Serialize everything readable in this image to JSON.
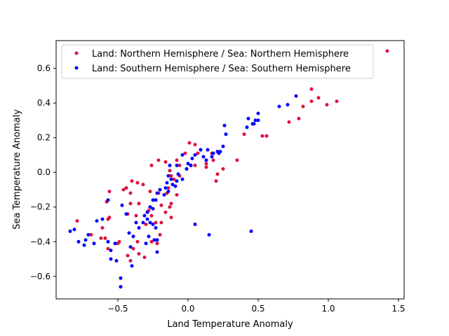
{
  "chart_data": {
    "type": "scatter",
    "xlabel": "Land Temperature Anomaly",
    "ylabel": "Sea Temperature Anomaly",
    "xlim": [
      -0.94,
      1.54
    ],
    "ylim": [
      -0.73,
      0.76
    ],
    "xticks": [
      -0.5,
      0.0,
      0.5,
      1.0,
      1.5
    ],
    "xtick_labels": [
      "−0.5",
      "0.0",
      "0.5",
      "1.0",
      "1.5"
    ],
    "yticks": [
      -0.6,
      -0.4,
      -0.2,
      0.0,
      0.2,
      0.4,
      0.6
    ],
    "ytick_labels": [
      "−0.6",
      "−0.4",
      "−0.2",
      "0.0",
      "0.2",
      "0.4",
      "0.6"
    ],
    "grid": false,
    "legend_position": "top",
    "series": [
      {
        "name": "Land: Northern Hemisphere / Sea: Northern Hemisphere",
        "color": "#dc143c",
        "points": [
          [
            1.42,
            0.7
          ],
          [
            0.88,
            0.48
          ],
          [
            0.93,
            0.43
          ],
          [
            0.88,
            0.41
          ],
          [
            0.99,
            0.39
          ],
          [
            1.06,
            0.41
          ],
          [
            0.82,
            0.38
          ],
          [
            0.79,
            0.31
          ],
          [
            0.72,
            0.29
          ],
          [
            0.53,
            0.21
          ],
          [
            0.56,
            0.21
          ],
          [
            0.4,
            0.22
          ],
          [
            0.35,
            0.07
          ],
          [
            0.25,
            0.02
          ],
          [
            0.21,
            -0.01
          ],
          [
            0.18,
            0.07
          ],
          [
            0.2,
            -0.05
          ],
          [
            0.17,
            0.11
          ],
          [
            0.13,
            0.05
          ],
          [
            0.13,
            0.03
          ],
          [
            0.09,
            0.13
          ],
          [
            0.07,
            0.11
          ],
          [
            0.05,
            0.16
          ],
          [
            0.05,
            0.04
          ],
          [
            0.01,
            0.17
          ],
          [
            0.02,
            0.04
          ],
          [
            -0.01,
            0.02
          ],
          [
            -0.02,
            0.11
          ],
          [
            -0.06,
            0.04
          ],
          [
            -0.08,
            0.07
          ],
          [
            -0.06,
            -0.02
          ],
          [
            -0.1,
            -0.04
          ],
          [
            -0.12,
            -0.02
          ],
          [
            -0.13,
            0.01
          ],
          [
            -0.14,
            -0.09
          ],
          [
            -0.08,
            -0.13
          ],
          [
            -0.15,
            -0.12
          ],
          [
            -0.13,
            -0.2
          ],
          [
            -0.12,
            -0.18
          ],
          [
            -0.16,
            -0.23
          ],
          [
            -0.12,
            -0.26
          ],
          [
            -0.21,
            -0.12
          ],
          [
            -0.19,
            -0.19
          ],
          [
            -0.19,
            -0.29
          ],
          [
            -0.16,
            0.06
          ],
          [
            -0.21,
            0.07
          ],
          [
            -0.26,
            0.04
          ],
          [
            -0.27,
            -0.11
          ],
          [
            -0.27,
            -0.2
          ],
          [
            -0.28,
            -0.22
          ],
          [
            -0.26,
            -0.25
          ],
          [
            -0.3,
            -0.3
          ],
          [
            -0.32,
            -0.07
          ],
          [
            -0.36,
            -0.06
          ],
          [
            -0.35,
            -0.18
          ],
          [
            -0.37,
            -0.25
          ],
          [
            -0.4,
            -0.05
          ],
          [
            -0.41,
            -0.18
          ],
          [
            -0.41,
            -0.12
          ],
          [
            -0.44,
            -0.09
          ],
          [
            -0.46,
            -0.1
          ],
          [
            -0.43,
            -0.24
          ],
          [
            -0.39,
            -0.44
          ],
          [
            -0.36,
            -0.4
          ],
          [
            -0.35,
            -0.47
          ],
          [
            -0.31,
            -0.49
          ],
          [
            -0.26,
            -0.4
          ],
          [
            -0.22,
            -0.41
          ],
          [
            -0.2,
            -0.36
          ],
          [
            -0.23,
            -0.29
          ],
          [
            -0.41,
            -0.51
          ],
          [
            -0.43,
            -0.48
          ],
          [
            -0.5,
            -0.41
          ],
          [
            -0.49,
            -0.4
          ],
          [
            -0.56,
            -0.26
          ],
          [
            -0.57,
            -0.27
          ],
          [
            -0.57,
            -0.44
          ],
          [
            -0.59,
            -0.38
          ],
          [
            -0.61,
            -0.32
          ],
          [
            -0.62,
            -0.38
          ],
          [
            -0.56,
            -0.11
          ],
          [
            -0.58,
            -0.17
          ],
          [
            -0.69,
            -0.36
          ],
          [
            -0.79,
            -0.28
          ]
        ]
      },
      {
        "name": "Land: Southern Hemisphere / Sea: Southern Hemisphere",
        "color": "#0000ff",
        "points": [
          [
            0.77,
            0.44
          ],
          [
            0.71,
            0.39
          ],
          [
            0.65,
            0.38
          ],
          [
            0.5,
            0.34
          ],
          [
            0.48,
            0.3
          ],
          [
            0.5,
            0.3
          ],
          [
            0.47,
            0.28
          ],
          [
            0.46,
            0.28
          ],
          [
            0.43,
            0.31
          ],
          [
            0.42,
            0.26
          ],
          [
            0.27,
            0.22
          ],
          [
            0.26,
            0.27
          ],
          [
            0.25,
            0.15
          ],
          [
            0.23,
            0.12
          ],
          [
            0.22,
            0.11
          ],
          [
            0.21,
            0.12
          ],
          [
            0.18,
            0.11
          ],
          [
            0.17,
            0.09
          ],
          [
            0.14,
            0.13
          ],
          [
            0.13,
            0.07
          ],
          [
            0.11,
            0.09
          ],
          [
            0.09,
            0.13
          ],
          [
            0.05,
            0.1
          ],
          [
            0.03,
            0.08
          ],
          [
            0.02,
            0.04
          ],
          [
            0.0,
            0.05
          ],
          [
            -0.01,
            0.02
          ],
          [
            -0.04,
            -0.04
          ],
          [
            -0.04,
            0.1
          ],
          [
            -0.08,
            0.04
          ],
          [
            -0.07,
            -0.01
          ],
          [
            -0.08,
            -0.05
          ],
          [
            -0.09,
            -0.08
          ],
          [
            -0.11,
            -0.07
          ],
          [
            -0.12,
            -0.04
          ],
          [
            -0.13,
            0.04
          ],
          [
            -0.14,
            -0.02
          ],
          [
            -0.15,
            -0.06
          ],
          [
            -0.16,
            -0.09
          ],
          [
            -0.14,
            -0.11
          ],
          [
            -0.17,
            -0.13
          ],
          [
            -0.2,
            -0.1
          ],
          [
            -0.22,
            -0.12
          ],
          [
            -0.23,
            -0.16
          ],
          [
            -0.25,
            -0.16
          ],
          [
            -0.25,
            -0.21
          ],
          [
            -0.27,
            -0.2
          ],
          [
            -0.29,
            -0.23
          ],
          [
            -0.29,
            -0.27
          ],
          [
            -0.31,
            -0.25
          ],
          [
            -0.27,
            -0.29
          ],
          [
            -0.25,
            -0.3
          ],
          [
            -0.23,
            -0.32
          ],
          [
            -0.24,
            -0.39
          ],
          [
            -0.22,
            -0.39
          ],
          [
            -0.22,
            -0.46
          ],
          [
            -0.28,
            -0.37
          ],
          [
            -0.3,
            -0.41
          ],
          [
            -0.32,
            -0.29
          ],
          [
            -0.35,
            -0.32
          ],
          [
            -0.37,
            -0.29
          ],
          [
            -0.39,
            -0.37
          ],
          [
            -0.41,
            -0.43
          ],
          [
            -0.42,
            -0.35
          ],
          [
            -0.4,
            -0.54
          ],
          [
            -0.44,
            -0.24
          ],
          [
            -0.47,
            -0.19
          ],
          [
            -0.48,
            -0.61
          ],
          [
            -0.48,
            -0.66
          ],
          [
            -0.51,
            -0.51
          ],
          [
            -0.52,
            -0.41
          ],
          [
            -0.55,
            -0.5
          ],
          [
            -0.55,
            -0.45
          ],
          [
            -0.57,
            -0.4
          ],
          [
            -0.57,
            -0.16
          ],
          [
            -0.61,
            -0.27
          ],
          [
            -0.65,
            -0.28
          ],
          [
            -0.67,
            -0.41
          ],
          [
            -0.71,
            -0.36
          ],
          [
            -0.73,
            -0.39
          ],
          [
            -0.74,
            -0.42
          ],
          [
            -0.78,
            -0.4
          ],
          [
            -0.81,
            -0.33
          ],
          [
            -0.84,
            -0.34
          ],
          [
            0.05,
            -0.3
          ],
          [
            0.15,
            -0.36
          ],
          [
            0.45,
            -0.34
          ]
        ]
      }
    ]
  }
}
